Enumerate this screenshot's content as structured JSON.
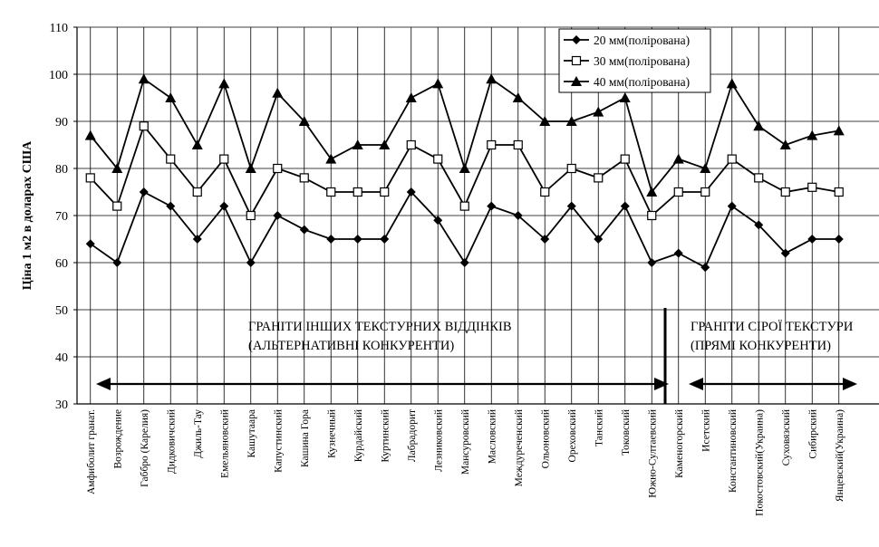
{
  "chart_data": {
    "type": "line",
    "ylabel": "Ціна 1 м2 в доларах США",
    "ylim": [
      30,
      110
    ],
    "yticks": [
      30,
      40,
      50,
      60,
      70,
      80,
      90,
      100,
      110
    ],
    "grid": "vertical lines at categories and horizontal lines at y ticks",
    "legend_position": "top-right",
    "categories": [
      "Амфиболит гранат.",
      "Возрождение",
      "Габбро (Карелия)",
      "Дидковичский",
      "Джиль-Тау",
      "Емельяновский",
      "Кашутаара",
      "Капустинский",
      "Кашина Гора",
      "Кузнечный",
      "Курдайский",
      "Куртинский",
      "Лабрадорит",
      "Лезниковский",
      "Мансуровский",
      "Масловский",
      "Междуреченский",
      "Ольоновский",
      "Ореховский",
      "Танский",
      "Токовский",
      "Южно-Султаевский",
      "Каменогорский",
      "Исетский",
      "Константиновский",
      "Покостовский(Украина)",
      "Суховязский",
      "Сибирский",
      "Янцевский(Украина)"
    ],
    "series": [
      {
        "name": "20 мм(полірована)",
        "marker": "filled-diamond",
        "values": [
          64,
          60,
          75,
          72,
          65,
          72,
          60,
          70,
          67,
          65,
          65,
          65,
          75,
          69,
          60,
          72,
          70,
          65,
          72,
          65,
          72,
          60,
          62,
          59,
          72,
          68,
          62,
          65,
          65
        ]
      },
      {
        "name": "30 мм(полірована)",
        "marker": "open-square",
        "values": [
          78,
          72,
          89,
          82,
          75,
          82,
          70,
          80,
          78,
          75,
          75,
          75,
          85,
          82,
          72,
          85,
          85,
          75,
          80,
          78,
          82,
          70,
          75,
          75,
          82,
          78,
          75,
          76,
          75
        ]
      },
      {
        "name": "40 мм(полірована)",
        "marker": "filled-triangle",
        "values": [
          87,
          80,
          99,
          95,
          85,
          98,
          80,
          96,
          90,
          82,
          85,
          85,
          95,
          98,
          80,
          99,
          95,
          90,
          90,
          92,
          95,
          75,
          82,
          80,
          98,
          89,
          85,
          87,
          88
        ]
      }
    ],
    "annotations": [
      {
        "lines": [
          "ГРАНІТИ ІНШИХ ТЕКСТУРНИХ ВІДДІНКІВ",
          "(АЛЬТЕРНАТИВНІ КОНКУРЕНТИ)"
        ],
        "spans_categories": [
          0,
          21
        ]
      },
      {
        "lines": [
          "ГРАНІТИ СІРОЇ ТЕКСТУРИ",
          "(ПРЯМІ КОНКУРЕНТИ)"
        ],
        "spans_categories": [
          22,
          28
        ]
      }
    ],
    "colors": {
      "line": "#000000",
      "grid": "#000000",
      "background": "#ffffff"
    }
  }
}
